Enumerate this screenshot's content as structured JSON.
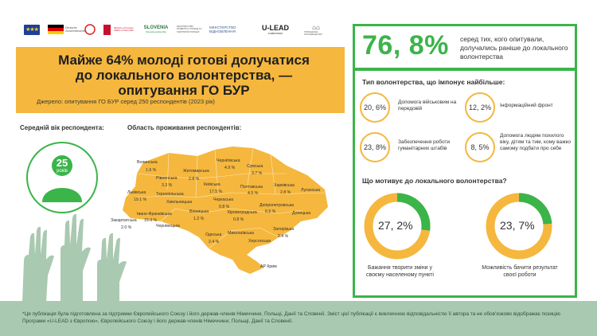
{
  "logos": {
    "eu": "★★★",
    "partner2": "Deutsche Zusammenarbeit",
    "partner3": "Polska pomoc",
    "partner4": "Ministry of Foreign Affairs of Denmark",
    "slovenia": "SLOVENIA",
    "slovenia_sub": "Slovenia partnership",
    "ministry_small": "МІНІСТЕРСТВО РОЗВИТКУ ГРОМАД ТА ТЕРИТОРІЙ УКРАЇНИ",
    "ministry": "МІНІСТЕРСТВО ВІДНОВЛЕННЯ",
    "ulead": "U-LEAD",
    "ulead_sub": "З ЄВРОПОЮ",
    "bur": "ГРОМАДСЬКА ОРГАНІЗАЦІЯ БУР"
  },
  "title": {
    "line1": "Майже 64% молоді готові долучатися",
    "line2": "до локального волонтерства, —",
    "line3": "опитування ГО БУР"
  },
  "source": "Джерело: опитування ГО БУР серед 250 респондентів (2023 рік)",
  "age": {
    "label": "Середній вік респондента:",
    "value": "25",
    "unit": "років"
  },
  "map": {
    "label": "Область проживання респондентів:",
    "regions": [
      {
        "name": "Волинська",
        "pct": "1.6 %"
      },
      {
        "name": "Рівненська",
        "pct": "3.3 %"
      },
      {
        "name": "Житомирська",
        "pct": "2.8 %"
      },
      {
        "name": "Чернігівська",
        "pct": "4.9 %"
      },
      {
        "name": "Сумська",
        "pct": "3.7 %"
      },
      {
        "name": "Львівська",
        "pct": "19.1 %"
      },
      {
        "name": "Тернопільська",
        "pct": ""
      },
      {
        "name": "Хмельницька",
        "pct": ""
      },
      {
        "name": "Київська",
        "pct": "17.5 %"
      },
      {
        "name": "Полтавська",
        "pct": "4.5 %"
      },
      {
        "name": "Харківська",
        "pct": "2.8 %"
      },
      {
        "name": "Луганська",
        "pct": ""
      },
      {
        "name": "Черкаська",
        "pct": "0.8 %"
      },
      {
        "name": "Закарпатська",
        "pct": "2.0 %"
      },
      {
        "name": "Івано-Франківська",
        "pct": "15.9 %"
      },
      {
        "name": "Вінницька",
        "pct": "1.2 %"
      },
      {
        "name": "Кіровоградська",
        "pct": "0.8 %"
      },
      {
        "name": "Дніпропетровська",
        "pct": "6.5 %"
      },
      {
        "name": "Донецька",
        "pct": ""
      },
      {
        "name": "Чернівецька",
        "pct": ""
      },
      {
        "name": "Одеська",
        "pct": "2.4 %"
      },
      {
        "name": "Миколаївська",
        "pct": ""
      },
      {
        "name": "Запорізька",
        "pct": "2.4 %"
      },
      {
        "name": "Херсонська",
        "pct": ""
      },
      {
        "name": "АР Крим",
        "pct": ""
      }
    ]
  },
  "panel": {
    "big_pct": "76, 8%",
    "big_note": "серед тих, кого опитували, долучались раніше до локального волонтерства",
    "q1": "Тип волонтерства, що імпонує найбільше:",
    "types": [
      {
        "pct": "20, 6%",
        "text": "Допомога військовим на передовій"
      },
      {
        "pct": "12, 2%",
        "text": "Інформаційний фронт"
      },
      {
        "pct": "23, 8%",
        "text": "Забезпечення роботи гуманітарних штабів"
      },
      {
        "pct": "8, 5%",
        "text": "Допомога людям похилого віку, дітям та тим, кому важко самому подбати про себе"
      }
    ],
    "q2": "Що мотивує до локального волонтерства?",
    "motives": [
      {
        "pct": "27, 2%",
        "value": 27.2,
        "text": "Бажання творити зміни у своєму населеному пункті"
      },
      {
        "pct": "23, 7%",
        "value": 23.7,
        "text": "Можливість бачити результат своєї роботи"
      }
    ]
  },
  "footer": "*Ця публікація була підготовлена за підтримки Європейського Союзу і його держав-членів Німеччини, Польщі, Данії та Словенії. Зміст цієї публікації є виключною відповідальністю її автора та не обов’язково відображає позицію Програми «U-LEAD з Європою», Європейського Союзу і його держав-членів Німеччини, Польщі, Данії та Словенії.",
  "colors": {
    "accent_orange": "#f5b73d",
    "accent_green": "#3bb44a",
    "footer_bg": "#a9c9b0",
    "hands": "#a9c9b0"
  }
}
